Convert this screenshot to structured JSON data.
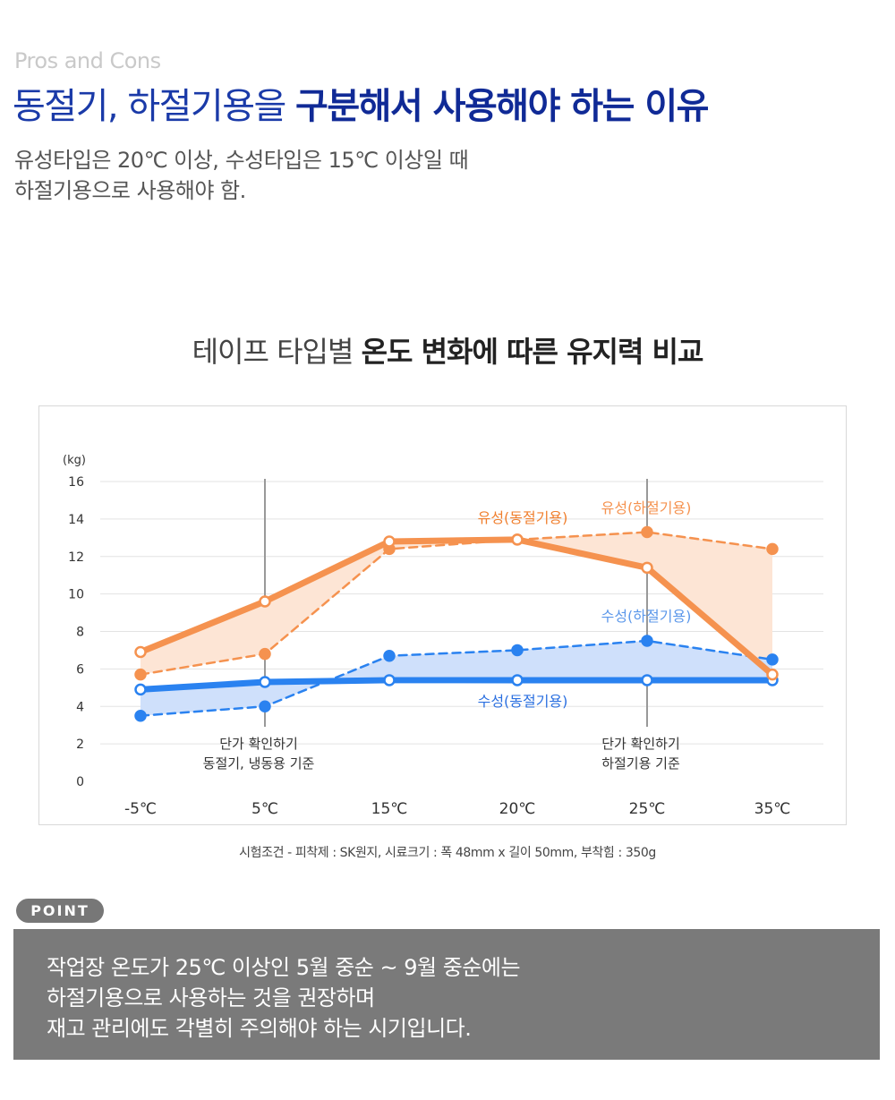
{
  "header": {
    "eyebrow": "Pros and Cons",
    "headline_regular": "동절기, 하절기용을 ",
    "headline_bold": "구분해서 사용해야 하는 이유",
    "desc_line1": "유성타입은 20℃ 이상, 수성타입은 15℃ 이상일 때",
    "desc_line2": "하절기용으로 사용해야 함."
  },
  "chart_title": {
    "regular": "테이프 타입별 ",
    "bold": "온도 변화에 따른 유지력 비교"
  },
  "chart_data": {
    "type": "line",
    "ylabel": "(kg)",
    "ylim": [
      0,
      16
    ],
    "yticks": [
      "0",
      "2",
      "4",
      "6",
      "8",
      "10",
      "12",
      "14",
      "16"
    ],
    "categories": [
      "-5℃",
      "5℃",
      "15℃",
      "20℃",
      "25℃",
      "35℃"
    ],
    "grid": true,
    "series": [
      {
        "name": "유성(동절기용)",
        "values": [
          6.9,
          9.6,
          12.8,
          12.9,
          11.4,
          5.7
        ],
        "color": "#f5924f",
        "style": "solid"
      },
      {
        "name": "유성(하절기용)",
        "values": [
          5.7,
          6.8,
          12.4,
          12.9,
          13.3,
          12.4
        ],
        "color": "#f5924f",
        "style": "dashed"
      },
      {
        "name": "수성(동절기용)",
        "values": [
          4.9,
          5.3,
          5.4,
          5.4,
          5.4,
          5.4
        ],
        "color": "#2a82f0",
        "style": "solid"
      },
      {
        "name": "수성(하절기용)",
        "values": [
          3.5,
          4.0,
          6.7,
          7.0,
          7.5,
          6.5
        ],
        "color": "#2a82f0",
        "style": "dashed"
      }
    ],
    "annotations": [
      {
        "category": "5℃",
        "line1": "단가 확인하기",
        "line2": "동절기, 냉동용 기준"
      },
      {
        "category": "25℃",
        "line1": "단가 확인하기",
        "line2": "하절기용 기준"
      }
    ],
    "fill_colors": {
      "orange": "#fde5d5",
      "blue": "#cfe0fb"
    }
  },
  "caption": "시험조건 -  피착제 : SK원지, 시료크기 : 폭 48mm x 길이 50mm, 부착힘 : 350g",
  "point": {
    "badge": "POINT",
    "line1": "작업장 온도가 25℃ 이상인 5월 중순 ~ 9월 중순에는",
    "line2": "하절기용으로 사용하는 것을 권장하며",
    "line3": "재고 관리에도 각별히 주의해야 하는 시기입니다."
  }
}
